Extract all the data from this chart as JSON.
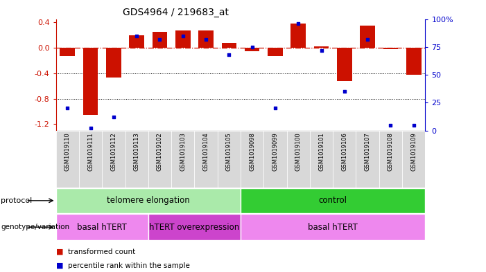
{
  "title": "GDS4964 / 219683_at",
  "samples": [
    "GSM1019110",
    "GSM1019111",
    "GSM1019112",
    "GSM1019113",
    "GSM1019102",
    "GSM1019103",
    "GSM1019104",
    "GSM1019105",
    "GSM1019098",
    "GSM1019099",
    "GSM1019100",
    "GSM1019101",
    "GSM1019106",
    "GSM1019107",
    "GSM1019108",
    "GSM1019109"
  ],
  "transformed_count": [
    -0.13,
    -1.05,
    -0.47,
    0.2,
    0.25,
    0.27,
    0.27,
    0.07,
    -0.05,
    -0.13,
    0.38,
    0.02,
    -0.52,
    0.35,
    -0.02,
    -0.42
  ],
  "percentile_rank": [
    20,
    2,
    12,
    85,
    82,
    85,
    82,
    68,
    75,
    20,
    96,
    72,
    35,
    82,
    5,
    5
  ],
  "protocol_groups": [
    {
      "label": "telomere elongation",
      "start": 0,
      "end": 8,
      "color": "#aaeaaa"
    },
    {
      "label": "control",
      "start": 8,
      "end": 16,
      "color": "#33cc33"
    }
  ],
  "genotype_groups": [
    {
      "label": "basal hTERT",
      "start": 0,
      "end": 4,
      "color": "#ee88ee"
    },
    {
      "label": "hTERT overexpression",
      "start": 4,
      "end": 8,
      "color": "#cc44cc"
    },
    {
      "label": "basal hTERT",
      "start": 8,
      "end": 16,
      "color": "#ee88ee"
    }
  ],
  "bar_color": "#cc1100",
  "dot_color": "#0000cc",
  "ylim": [
    -1.3,
    0.45
  ],
  "yticks_left": [
    -1.2,
    -0.8,
    -0.4,
    0.0,
    0.4
  ],
  "yticks_right": [
    0,
    25,
    50,
    75,
    100
  ],
  "hline_y": 0.0,
  "dotted_lines": [
    -0.4,
    -0.8
  ],
  "bar_width": 0.65,
  "legend_items": [
    {
      "label": "transformed count",
      "color": "#cc1100"
    },
    {
      "label": "percentile rank within the sample",
      "color": "#0000cc"
    }
  ]
}
